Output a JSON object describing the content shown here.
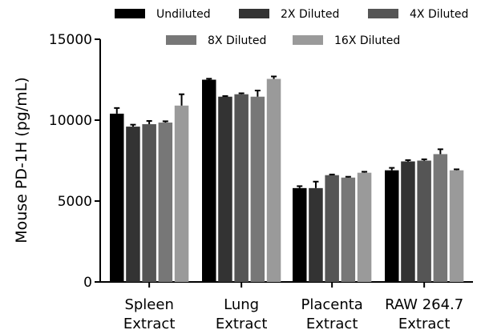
{
  "chart_data": {
    "type": "bar",
    "ylabel": "Mouse PD-1H (pg/mL)",
    "ylim": [
      0,
      15000
    ],
    "yticks": [
      0,
      5000,
      10000,
      15000
    ],
    "categories": [
      [
        "Spleen",
        "Extract"
      ],
      [
        "Lung",
        "Extract"
      ],
      [
        "Placenta",
        "Extract"
      ],
      [
        "RAW 264.7",
        "Extract"
      ]
    ],
    "series": [
      {
        "name": "Undiluted",
        "color": "#000000",
        "values": [
          10400,
          12500,
          5800,
          6900
        ],
        "errors": [
          350,
          60,
          120,
          150
        ]
      },
      {
        "name": "2X Diluted",
        "color": "#333333",
        "values": [
          9600,
          11450,
          5800,
          7450
        ],
        "errors": [
          120,
          40,
          400,
          80
        ]
      },
      {
        "name": "4X Diluted",
        "color": "#555555",
        "values": [
          9750,
          11600,
          6600,
          7500
        ],
        "errors": [
          200,
          60,
          40,
          80
        ]
      },
      {
        "name": "8X Diluted",
        "color": "#777777",
        "values": [
          9850,
          11450,
          6450,
          7900
        ],
        "errors": [
          80,
          380,
          50,
          300
        ]
      },
      {
        "name": "16X Diluted",
        "color": "#9a9a9a",
        "values": [
          10900,
          12550,
          6750,
          6900
        ],
        "errors": [
          700,
          150,
          60,
          60
        ]
      }
    ],
    "legend": {
      "position": "top"
    }
  }
}
